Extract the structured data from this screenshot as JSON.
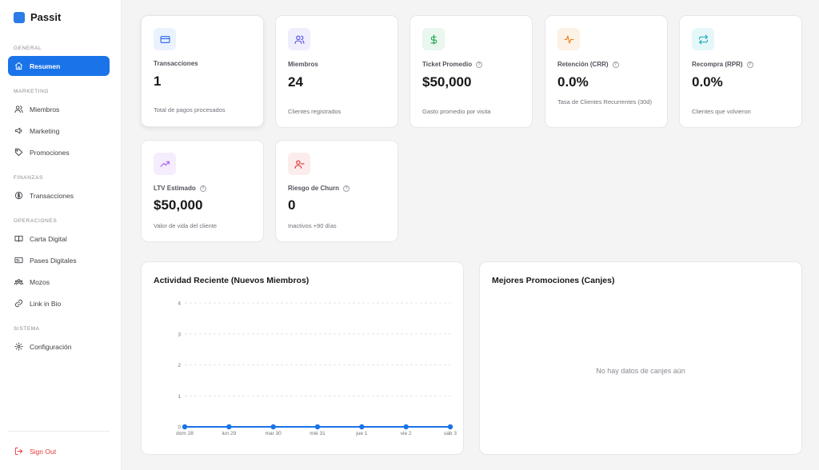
{
  "app": {
    "name": "Passit"
  },
  "sidebar": {
    "sections": {
      "general": "GENERAL",
      "marketing": "MARKETING",
      "finanzas": "FINANZAS",
      "operaciones": "OPERACIONES",
      "sistema": "SISTEMA"
    },
    "items": [
      {
        "label": "Resumen",
        "icon": "home-icon",
        "active": true
      },
      {
        "label": "Miembros",
        "icon": "users-icon"
      },
      {
        "label": "Marketing",
        "icon": "megaphone-icon"
      },
      {
        "label": "Promociones",
        "icon": "tag-icon"
      },
      {
        "label": "Transacciones",
        "icon": "dollar-circle-icon"
      },
      {
        "label": "Carta Digital",
        "icon": "book-icon"
      },
      {
        "label": "Pases Digitales",
        "icon": "id-card-icon"
      },
      {
        "label": "Mozos",
        "icon": "users-group-icon"
      },
      {
        "label": "Link in Bio",
        "icon": "link-icon"
      },
      {
        "label": "Configuración",
        "icon": "gear-icon"
      }
    ],
    "signout": "Sign Out"
  },
  "stats": [
    {
      "title": "Transacciones",
      "value": "1",
      "sub": "Total de pagos procesados",
      "icon": "credit-card-icon",
      "color": "#2563eb",
      "bg": "#eaf2fe"
    },
    {
      "title": "Miembros",
      "value": "24",
      "sub": "Clientes registrados",
      "icon": "users-icon",
      "color": "#4f46e5",
      "bg": "#eeeefd"
    },
    {
      "title": "Ticket Promedio",
      "value": "$50,000",
      "sub": "Gasto promedio por visita",
      "icon": "dollar-icon",
      "color": "#16a34a",
      "bg": "#e9f7ee"
    },
    {
      "title": "Retención (CRR)",
      "value": "0.0%",
      "sub": "Tasa de Clientes Recurrentes (30d)",
      "icon": "activity-icon",
      "color": "#ea7a12",
      "bg": "#fdf2e6"
    },
    {
      "title": "Recompra (RPR)",
      "value": "0.0%",
      "sub": "Clientes que volvieron",
      "icon": "repeat-icon",
      "color": "#0ea5b7",
      "bg": "#e6f7f9"
    },
    {
      "title": "LTV Estimado",
      "value": "$50,000",
      "sub": "Valor de vida del cliente",
      "icon": "trending-up-icon",
      "color": "#a855f7",
      "bg": "#f5ecfd"
    },
    {
      "title": "Riesgo de Churn",
      "value": "0",
      "sub": "Inactivos +90 días",
      "icon": "user-minus-icon",
      "color": "#dc2626",
      "bg": "#fdecec"
    }
  ],
  "activity": {
    "title": "Actividad Reciente (Nuevos Miembros)"
  },
  "promos": {
    "title": "Mejores Promociones (Canjes)",
    "empty": "No hay datos de canjes aún"
  },
  "chart_data": {
    "type": "line",
    "title": "Actividad Reciente (Nuevos Miembros)",
    "categories": [
      "dom 28",
      "lun 29",
      "mar 30",
      "mié 31",
      "jue 1",
      "vie 2",
      "sáb 3"
    ],
    "series": [
      {
        "values": [
          0,
          0,
          0,
          0,
          0,
          0,
          0
        ]
      }
    ],
    "yticks": [
      0,
      1,
      2,
      3,
      4
    ],
    "ylim": [
      0,
      4
    ],
    "grid": true,
    "color": "#1a73e8"
  }
}
